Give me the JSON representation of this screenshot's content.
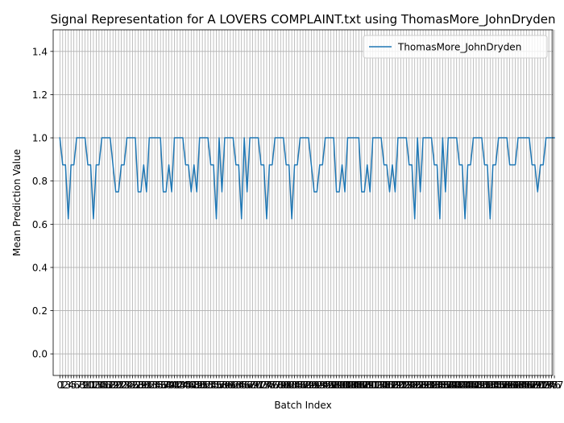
{
  "chart_data": {
    "type": "line",
    "title": "Signal Representation for A LOVERS COMPLAINT.txt using ThomasMore_JohnDryden",
    "xlabel": "Batch Index",
    "ylabel": "Mean Prediction Value",
    "xlim": [
      -2.4,
      176.4
    ],
    "ylim": [
      -0.1,
      1.5
    ],
    "yticks": [
      "0.0",
      "0.2",
      "0.4",
      "0.6",
      "0.8",
      "1.0",
      "1.2",
      "1.4"
    ],
    "grid": true,
    "legend_position": "top-right",
    "series": [
      {
        "name": "ThomasMore_JohnDryden",
        "color": "#1f77b4",
        "values": [
          1.0,
          0.875,
          0.875,
          0.625,
          0.875,
          0.875,
          1.0,
          1.0,
          1.0,
          1.0,
          0.875,
          0.875,
          0.625,
          0.875,
          0.875,
          1.0,
          1.0,
          1.0,
          1.0,
          0.875,
          0.75,
          0.75,
          0.875,
          0.875,
          1.0,
          1.0,
          1.0,
          1.0,
          0.75,
          0.75,
          0.875,
          0.75,
          1.0,
          1.0,
          1.0,
          1.0,
          1.0,
          0.75,
          0.75,
          0.875,
          0.75,
          1.0,
          1.0,
          1.0,
          1.0,
          0.875,
          0.875,
          0.75,
          0.875,
          0.75,
          1.0,
          1.0,
          1.0,
          1.0,
          0.875,
          0.875,
          0.625,
          1.0,
          0.75,
          1.0,
          1.0,
          1.0,
          1.0,
          0.875,
          0.875,
          0.625,
          1.0,
          0.75,
          1.0,
          1.0,
          1.0,
          1.0,
          0.875,
          0.875,
          0.625,
          0.875,
          0.875,
          1.0,
          1.0,
          1.0,
          1.0,
          0.875,
          0.875,
          0.625,
          0.875,
          0.875,
          1.0,
          1.0,
          1.0,
          1.0,
          0.875,
          0.75,
          0.75,
          0.875,
          0.875,
          1.0,
          1.0,
          1.0,
          1.0,
          0.75,
          0.75,
          0.875,
          0.75,
          1.0,
          1.0,
          1.0,
          1.0,
          1.0,
          0.75,
          0.75,
          0.875,
          0.75,
          1.0,
          1.0,
          1.0,
          1.0,
          0.875,
          0.875,
          0.75,
          0.875,
          0.75,
          1.0,
          1.0,
          1.0,
          1.0,
          0.875,
          0.875,
          0.625,
          1.0,
          0.75,
          1.0,
          1.0,
          1.0,
          1.0,
          0.875,
          0.875,
          0.625,
          1.0,
          0.75,
          1.0,
          1.0,
          1.0,
          1.0,
          0.875,
          0.875,
          0.625,
          0.875,
          0.875,
          1.0,
          1.0,
          1.0,
          1.0,
          0.875,
          0.875,
          0.625,
          0.875,
          0.875,
          1.0,
          1.0,
          1.0,
          1.0,
          0.875,
          0.875,
          0.875,
          1.0,
          1.0,
          1.0,
          1.0,
          1.0,
          0.875,
          0.875,
          0.75,
          0.875,
          0.875,
          1.0,
          1.0,
          1.0,
          1.0
        ]
      }
    ]
  }
}
